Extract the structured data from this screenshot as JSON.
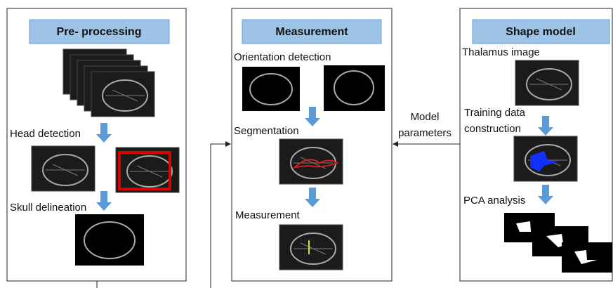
{
  "panels": [
    {
      "title": "Pre- processing",
      "steps": [
        "Head detection",
        "Skull delineation"
      ]
    },
    {
      "title": "Measurement",
      "steps": [
        "Orientation detection",
        "Segmentation",
        "Measurement"
      ]
    },
    {
      "title": "Shape model",
      "steps": [
        "Thalamus image",
        "Training data",
        "construction",
        "PCA analysis"
      ]
    }
  ],
  "connector": {
    "label": [
      "Model",
      "parameters"
    ]
  }
}
